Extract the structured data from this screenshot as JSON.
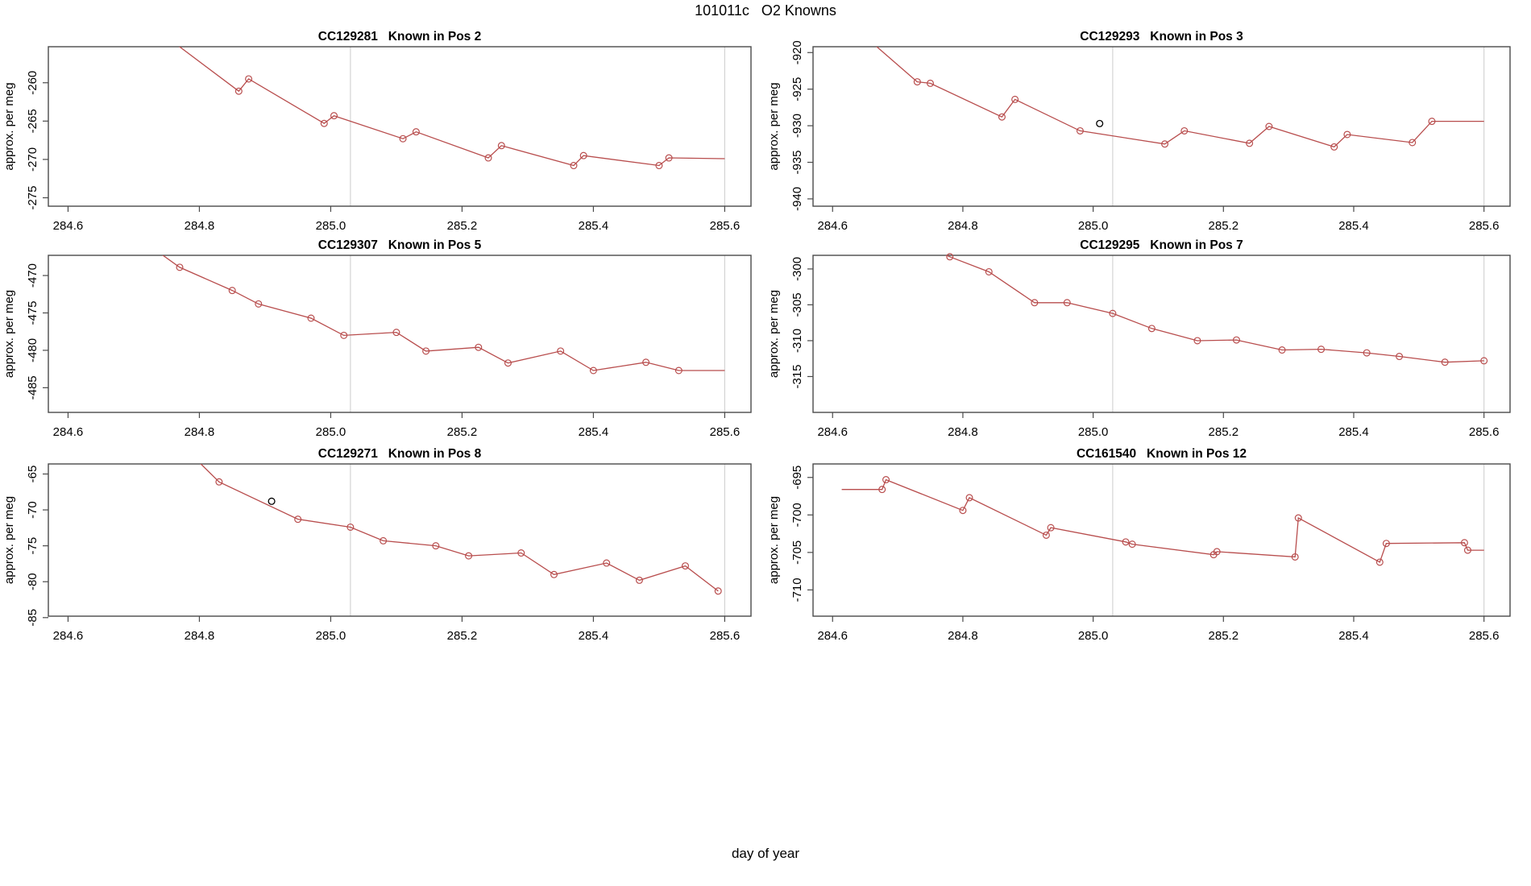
{
  "figure": {
    "title": "101011c   O2 Knowns",
    "xlabel": "day of year"
  },
  "chart_data": {
    "type": "line",
    "layout": "2 columns x 3 rows of subplots",
    "xlabel": "day of year",
    "ylabel": "approx. per meg",
    "xlim": [
      284.57,
      285.64
    ],
    "xticks": [
      284.6,
      284.8,
      285.0,
      285.2,
      285.4,
      285.6
    ],
    "vlines": [
      285.03,
      285.6
    ],
    "grid": "off",
    "marker": "open-circle",
    "line_color": "#b84d4d",
    "outlier_color": "#000000",
    "vline_color": "#d4d4d4",
    "frame_color": "#4a4a4a",
    "plots": [
      {
        "title": "CC129281   Known in Pos 2",
        "ylim": [
          -276.1,
          -255.3
        ],
        "yticks": [
          -275,
          -270,
          -265,
          -260
        ],
        "points": [
          [
            284.7,
            -250.8,
            0
          ],
          [
            284.86,
            -261.1,
            1
          ],
          [
            284.875,
            -259.5,
            1
          ],
          [
            284.99,
            -265.3,
            1
          ],
          [
            285.005,
            -264.3,
            1
          ],
          [
            285.11,
            -267.3,
            1
          ],
          [
            285.13,
            -266.4,
            1
          ],
          [
            285.24,
            -269.8,
            1
          ],
          [
            285.26,
            -268.2,
            1
          ],
          [
            285.37,
            -270.8,
            1
          ],
          [
            285.385,
            -269.5,
            1
          ],
          [
            285.5,
            -270.8,
            1
          ],
          [
            285.515,
            -269.8,
            1
          ],
          [
            285.6,
            -269.9,
            0
          ]
        ],
        "black_points": []
      },
      {
        "title": "CC129293   Known in Pos 3",
        "ylim": [
          -941.0,
          -919.2
        ],
        "yticks": [
          -940,
          -935,
          -930,
          -925,
          -920
        ],
        "points": [
          [
            284.62,
            -915.5,
            0
          ],
          [
            284.73,
            -924.0,
            1
          ],
          [
            284.75,
            -924.2,
            1
          ],
          [
            284.86,
            -928.8,
            1
          ],
          [
            284.88,
            -926.4,
            1
          ],
          [
            284.98,
            -930.7,
            1
          ],
          [
            285.11,
            -932.5,
            1
          ],
          [
            285.14,
            -930.7,
            1
          ],
          [
            285.24,
            -932.4,
            1
          ],
          [
            285.27,
            -930.1,
            1
          ],
          [
            285.37,
            -932.9,
            1
          ],
          [
            285.39,
            -931.2,
            1
          ],
          [
            285.49,
            -932.3,
            1
          ],
          [
            285.52,
            -929.4,
            1
          ],
          [
            285.6,
            -929.4,
            0
          ]
        ],
        "black_points": [
          [
            285.01,
            -929.7
          ]
        ]
      },
      {
        "title": "CC129307   Known in Pos 5",
        "ylim": [
          -488.3,
          -467.3
        ],
        "yticks": [
          -485,
          -480,
          -475,
          -470
        ],
        "points": [
          [
            284.7,
            -464.5,
            0
          ],
          [
            284.77,
            -468.9,
            1
          ],
          [
            284.85,
            -472.0,
            1
          ],
          [
            284.89,
            -473.8,
            1
          ],
          [
            284.97,
            -475.7,
            1
          ],
          [
            285.02,
            -478.0,
            1
          ],
          [
            285.1,
            -477.6,
            1
          ],
          [
            285.145,
            -480.1,
            1
          ],
          [
            285.225,
            -479.6,
            1
          ],
          [
            285.27,
            -481.7,
            1
          ],
          [
            285.35,
            -480.1,
            1
          ],
          [
            285.4,
            -482.7,
            1
          ],
          [
            285.48,
            -481.6,
            1
          ],
          [
            285.53,
            -482.7,
            1
          ],
          [
            285.6,
            -482.7,
            0
          ]
        ],
        "black_points": []
      },
      {
        "title": "CC129295   Known in Pos 7",
        "ylim": [
          -320.0,
          -298.1
        ],
        "yticks": [
          -315,
          -310,
          -305,
          -300
        ],
        "points": [
          [
            284.6,
            -291.5,
            0
          ],
          [
            284.78,
            -298.3,
            1
          ],
          [
            284.84,
            -300.4,
            1
          ],
          [
            284.91,
            -304.7,
            1
          ],
          [
            284.96,
            -304.7,
            1
          ],
          [
            285.03,
            -306.2,
            1
          ],
          [
            285.09,
            -308.3,
            1
          ],
          [
            285.16,
            -310.0,
            1
          ],
          [
            285.22,
            -309.9,
            1
          ],
          [
            285.29,
            -311.3,
            1
          ],
          [
            285.35,
            -311.2,
            1
          ],
          [
            285.42,
            -311.7,
            1
          ],
          [
            285.47,
            -312.2,
            1
          ],
          [
            285.54,
            -313.0,
            1
          ],
          [
            285.6,
            -312.8,
            1
          ]
        ],
        "black_points": []
      },
      {
        "title": "CC129271   Known in Pos 8",
        "ylim": [
          -84.8,
          -63.6
        ],
        "yticks": [
          -85,
          -80,
          -75,
          -70,
          -65
        ],
        "points": [
          [
            284.79,
            -62.5,
            0
          ],
          [
            284.83,
            -66.1,
            1
          ],
          [
            284.95,
            -71.3,
            1
          ],
          [
            285.03,
            -72.4,
            1
          ],
          [
            285.08,
            -74.3,
            1
          ],
          [
            285.16,
            -75.0,
            1
          ],
          [
            285.21,
            -76.4,
            1
          ],
          [
            285.29,
            -76.0,
            1
          ],
          [
            285.34,
            -79.0,
            1
          ],
          [
            285.42,
            -77.4,
            1
          ],
          [
            285.47,
            -79.8,
            1
          ],
          [
            285.54,
            -77.8,
            1
          ],
          [
            285.59,
            -81.3,
            1
          ]
        ],
        "black_points": [
          [
            284.91,
            -68.8
          ]
        ]
      },
      {
        "title": "CC161540   Known in Pos 12",
        "ylim": [
          -713.5,
          -693.2
        ],
        "yticks": [
          -710,
          -705,
          -700,
          -695
        ],
        "points": [
          [
            284.614,
            -696.6,
            0
          ],
          [
            284.676,
            -696.6,
            1
          ],
          [
            284.682,
            -695.3,
            1
          ],
          [
            284.8,
            -699.4,
            1
          ],
          [
            284.81,
            -697.7,
            1
          ],
          [
            284.928,
            -702.7,
            1
          ],
          [
            284.935,
            -701.7,
            1
          ],
          [
            285.05,
            -703.6,
            1
          ],
          [
            285.06,
            -703.9,
            1
          ],
          [
            285.185,
            -705.3,
            1
          ],
          [
            285.19,
            -704.9,
            1
          ],
          [
            285.31,
            -705.6,
            1
          ],
          [
            285.315,
            -700.4,
            1
          ],
          [
            285.44,
            -706.3,
            1
          ],
          [
            285.45,
            -703.8,
            1
          ],
          [
            285.57,
            -703.7,
            1
          ],
          [
            285.575,
            -704.7,
            1
          ],
          [
            285.6,
            -704.7,
            0
          ]
        ],
        "black_points": []
      }
    ]
  }
}
